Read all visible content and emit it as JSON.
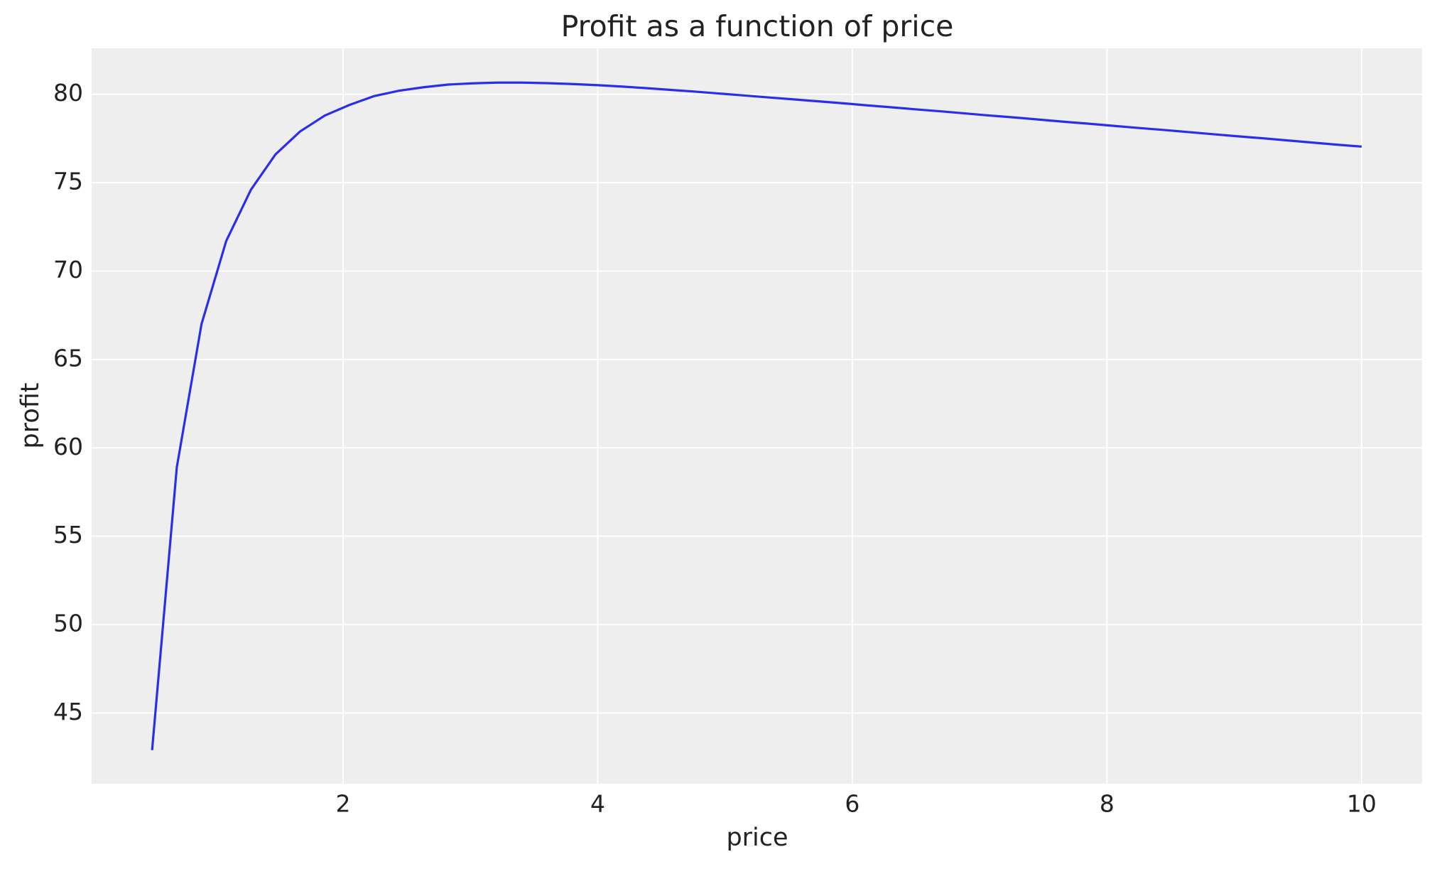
{
  "chart_data": {
    "type": "line",
    "title": "Profit as a function of price",
    "x_label": "price",
    "y_label": "profit",
    "x": [
      0.5,
      0.694,
      0.888,
      1.082,
      1.276,
      1.469,
      1.663,
      1.857,
      2.051,
      2.245,
      2.439,
      2.633,
      2.827,
      3.02,
      3.214,
      3.408,
      3.602,
      3.796,
      3.99,
      4.184,
      4.378,
      4.571,
      4.765,
      4.959,
      5.153,
      5.347,
      5.541,
      5.735,
      5.929,
      6.122,
      6.316,
      6.51,
      6.704,
      6.898,
      7.092,
      7.286,
      7.48,
      7.673,
      7.867,
      8.061,
      8.255,
      8.449,
      8.643,
      8.837,
      9.031,
      9.224,
      9.418,
      9.612,
      9.806,
      10.0
    ],
    "values": [
      42.9,
      58.9,
      67.0,
      71.7,
      74.6,
      76.6,
      77.9,
      78.8,
      79.4,
      79.9,
      80.2,
      80.4,
      80.55,
      80.62,
      80.66,
      80.66,
      80.63,
      80.58,
      80.52,
      80.44,
      80.35,
      80.25,
      80.15,
      80.04,
      79.93,
      79.82,
      79.71,
      79.6,
      79.49,
      79.37,
      79.26,
      79.14,
      79.03,
      78.91,
      78.79,
      78.68,
      78.56,
      78.44,
      78.33,
      78.21,
      78.09,
      77.98,
      77.86,
      77.74,
      77.62,
      77.51,
      77.39,
      77.27,
      77.15,
      77.04
    ],
    "color": "#2a2eec",
    "xlim": [
      0.025,
      10.475
    ],
    "xticks": [
      2,
      4,
      6,
      8,
      10
    ],
    "ylim": [
      41.0,
      82.6
    ],
    "yticks": [
      45,
      50,
      55,
      60,
      65,
      70,
      75,
      80
    ],
    "grid": true
  }
}
